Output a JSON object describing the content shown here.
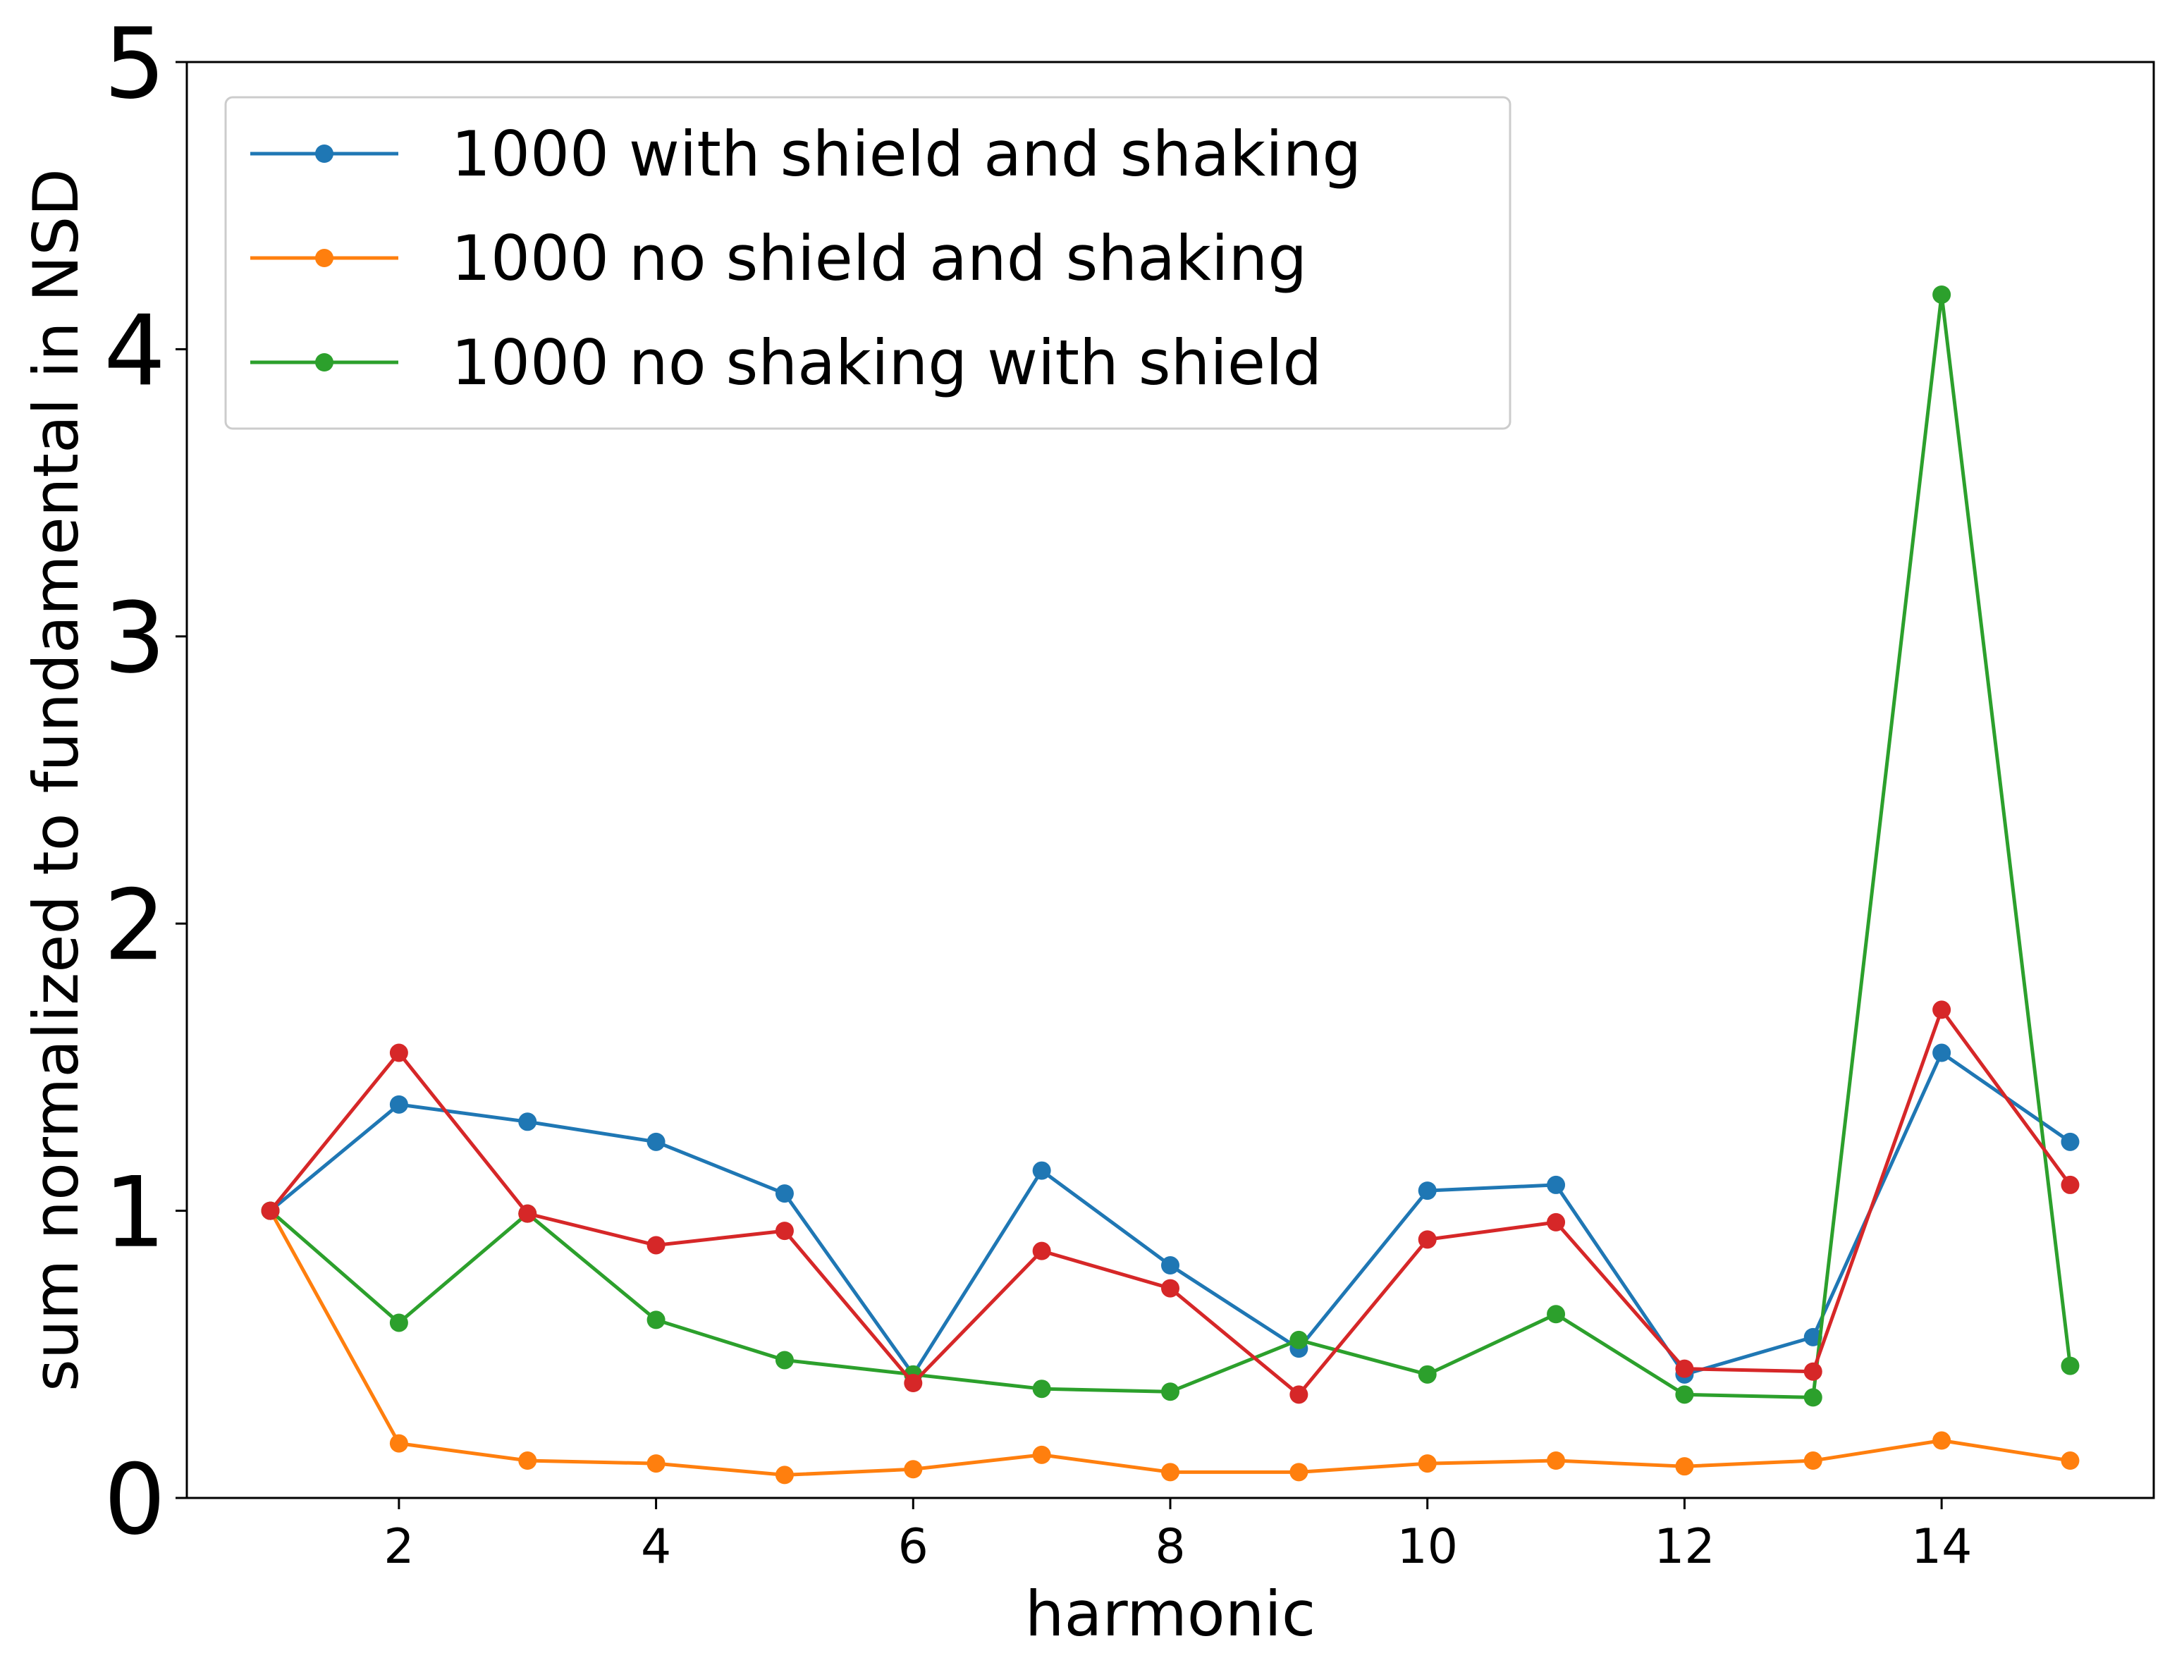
{
  "chart_data": {
    "type": "line",
    "title": "",
    "xlabel": "harmonic",
    "ylabel": "sum normalized to fundamental in NSD",
    "xlim": [
      0.35,
      15.65
    ],
    "ylim": [
      0,
      5
    ],
    "xticks": [
      2,
      4,
      6,
      8,
      10,
      12,
      14
    ],
    "yticks": [
      0,
      1,
      2,
      3,
      4,
      5
    ],
    "grid": false,
    "legend_position": "upper-left",
    "x": [
      1,
      2,
      3,
      4,
      5,
      6,
      7,
      8,
      9,
      10,
      11,
      12,
      13,
      14,
      15
    ],
    "series": [
      {
        "name": "1000 with shield and shaking",
        "color": "#1f77b4",
        "in_legend": true,
        "values": [
          1.0,
          1.37,
          1.31,
          1.24,
          1.06,
          0.43,
          1.14,
          0.81,
          0.52,
          1.07,
          1.09,
          0.43,
          0.56,
          1.55,
          1.24
        ]
      },
      {
        "name": "1000 no shield and shaking",
        "color": "#ff7f0e",
        "in_legend": true,
        "values": [
          1.0,
          0.19,
          0.13,
          0.12,
          0.08,
          0.1,
          0.15,
          0.09,
          0.09,
          0.12,
          0.13,
          0.11,
          0.13,
          0.2,
          0.13
        ]
      },
      {
        "name": "1000 no shaking with shield",
        "color": "#2ca02c",
        "in_legend": true,
        "values": [
          1.0,
          0.61,
          0.99,
          0.62,
          0.48,
          0.43,
          0.38,
          0.37,
          0.55,
          0.43,
          0.64,
          0.36,
          0.35,
          4.19,
          0.46
        ]
      },
      {
        "name": "",
        "color": "#d62728",
        "in_legend": false,
        "values": [
          1.0,
          1.55,
          0.99,
          0.88,
          0.93,
          0.4,
          0.86,
          0.73,
          0.36,
          0.9,
          0.96,
          0.45,
          0.44,
          1.7,
          1.09
        ]
      }
    ]
  }
}
